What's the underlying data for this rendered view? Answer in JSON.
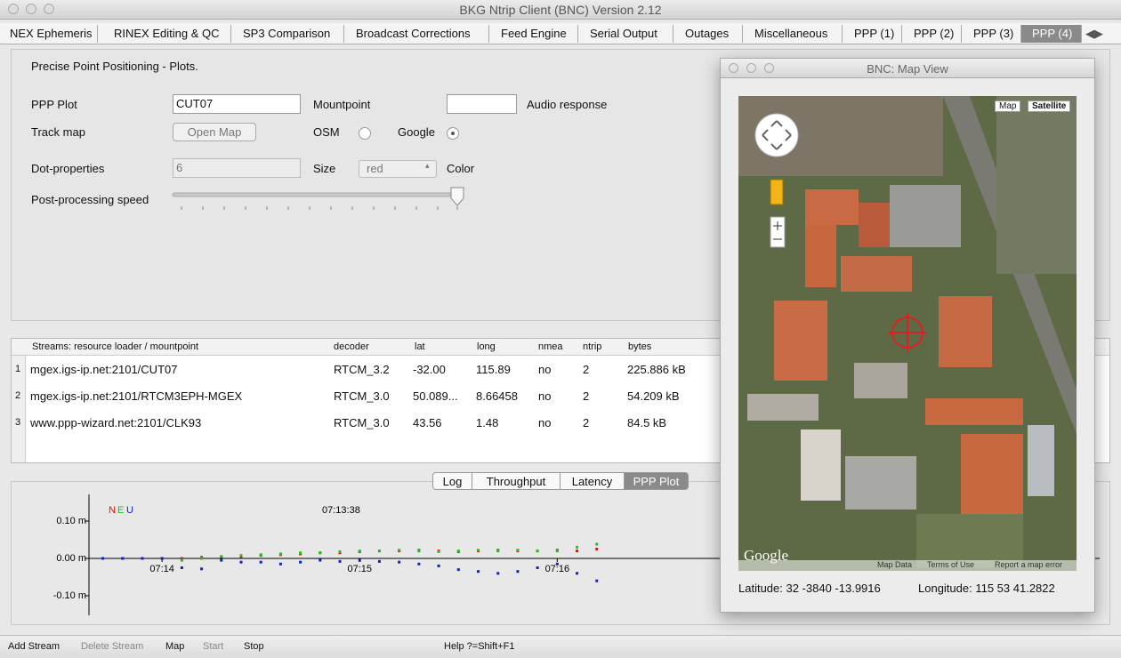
{
  "window_title": "BKG Ntrip Client (BNC) Version 2.12",
  "tabs": [
    "NEX Ephemeris",
    "RINEX Editing & QC",
    "SP3 Comparison",
    "Broadcast Corrections",
    "Feed Engine",
    "Serial Output",
    "Outages",
    "Miscellaneous",
    "PPP (1)",
    "PPP (2)",
    "PPP (3)",
    "PPP (4)"
  ],
  "panel": {
    "heading": "Precise Point Positioning - Plots.",
    "ppp_plot_label": "PPP Plot",
    "ppp_plot_value": "CUT07",
    "mountpoint_label": "Mountpoint",
    "audio_label": "Audio response",
    "track_map_label": "Track map",
    "open_map_button": "Open Map",
    "osm_label": "OSM",
    "google_label": "Google",
    "dot_label": "Dot-properties",
    "dot_size_value": "6",
    "size_label": "Size",
    "color_value": "red",
    "color_label": "Color",
    "speed_label": "Post-processing speed"
  },
  "streams": {
    "headers": [
      "Streams:   resource loader / mountpoint",
      "decoder",
      "lat",
      "long",
      "nmea",
      "ntrip",
      "bytes"
    ],
    "row_numbers": [
      "1",
      "2",
      "3"
    ],
    "rows": [
      [
        "mgex.igs-ip.net:2101/CUT07",
        "RTCM_3.2",
        "-32.00",
        "115.89",
        "no",
        "2",
        "225.886 kB"
      ],
      [
        "mgex.igs-ip.net:2101/RTCM3EPH-MGEX",
        "RTCM_3.0",
        "50.089...",
        "8.66458",
        "no",
        "2",
        "54.209 kB"
      ],
      [
        "www.ppp-wizard.net:2101/CLK93",
        "RTCM_3.0",
        "43.56",
        "1.48",
        "no",
        "2",
        "84.5 kB"
      ]
    ]
  },
  "log_tabs": [
    "Log",
    "Throughput",
    "Latency",
    "PPP Plot"
  ],
  "chart_data": {
    "type": "scatter",
    "annotation": "07:13:38",
    "x": [
      13.7,
      13.8,
      13.9,
      14.0,
      14.1,
      14.2,
      14.3,
      14.4,
      14.5,
      14.6,
      14.7,
      14.8,
      14.9,
      15.0,
      15.1,
      15.2,
      15.3,
      15.4,
      15.5,
      15.6,
      15.7,
      15.8,
      15.9,
      16.0,
      16.1,
      16.2
    ],
    "series": [
      {
        "name": "N",
        "color": "#e01010",
        "values": [
          0,
          0,
          0,
          0,
          0,
          0.003,
          0.005,
          0.005,
          0.008,
          0.01,
          0.012,
          0.015,
          0.015,
          0.018,
          0.02,
          0.02,
          0.022,
          0.02,
          0.018,
          0.02,
          0.022,
          0.02,
          0.02,
          0.022,
          0.02,
          0.025
        ]
      },
      {
        "name": "E",
        "color": "#20c020",
        "values": [
          0,
          0,
          0,
          0,
          -0.005,
          0,
          0.005,
          0.008,
          0.01,
          0.012,
          0.015,
          0.015,
          0.018,
          0.02,
          0.02,
          0.022,
          0.02,
          0.018,
          0.02,
          0.022,
          0.02,
          0.022,
          0.02,
          0.02,
          0.03,
          0.038
        ]
      },
      {
        "name": "U",
        "color": "#1020d0",
        "values": [
          0,
          0,
          0,
          0,
          -0.025,
          -0.028,
          -0.005,
          -0.01,
          -0.01,
          -0.015,
          -0.01,
          -0.005,
          -0.008,
          -0.005,
          -0.008,
          -0.01,
          -0.015,
          -0.02,
          -0.03,
          -0.035,
          -0.04,
          -0.035,
          -0.025,
          -0.015,
          -0.04,
          -0.06
        ]
      }
    ],
    "xlim": [
      13.63,
      16.8
    ],
    "ylim": [
      -0.15,
      0.15
    ],
    "xticks": [
      {
        "value": 14,
        "label": "07:14"
      },
      {
        "value": 15,
        "label": "07:15"
      },
      {
        "value": 16,
        "label": "07:16"
      }
    ],
    "yticks": [
      {
        "value": 0.1,
        "label": "0.10 m"
      },
      {
        "value": 0,
        "label": "0.00 m"
      },
      {
        "value": -0.1,
        "label": "-0.10 m"
      }
    ]
  },
  "toolbar": [
    "Add Stream",
    "Delete Stream",
    "Map",
    "Start",
    "Stop",
    "Help ?=Shift+F1"
  ],
  "map_view": {
    "title": "BNC: Map View",
    "map_button": "Map",
    "satellite_button": "Satellite",
    "logo": "Google",
    "footer": [
      "Map Data",
      "Terms of Use",
      "Report a map error"
    ],
    "latitude": "Latitude: 32 -3840 -13.9916",
    "longitude": "Longitude: 115 53 41.2822"
  }
}
